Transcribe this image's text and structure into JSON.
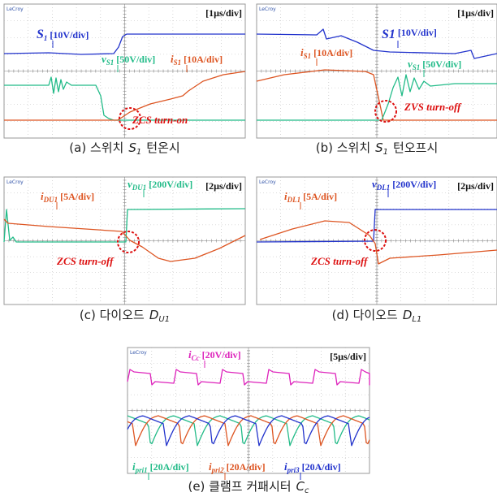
{
  "logo": "LeCroy",
  "panels": [
    {
      "timebase": "[1µs/div]",
      "caption": {
        "text": "(a) 스위치",
        "symbol": "S",
        "sub": "1",
        "suffix": "턴온시"
      },
      "labels": [
        {
          "symbol": "S",
          "sub": "1",
          "scale": "[10V/div]"
        },
        {
          "symbol": "v",
          "sub": "S1",
          "scale": "[50V/div]"
        },
        {
          "symbol": "i",
          "sub": "S1",
          "scale": "[10A/div]"
        }
      ],
      "annotation": "ZCS turn-on"
    },
    {
      "timebase": "[1µs/div]",
      "caption": {
        "text": "(b) 스위치",
        "symbol": "S",
        "sub": "1",
        "suffix": "턴오프시"
      },
      "labels": [
        {
          "symbol": "i",
          "sub": "S1",
          "scale": "[10A/div]"
        },
        {
          "symbol": "S1",
          "sub": "",
          "scale": "[10V/div]"
        },
        {
          "symbol": "v",
          "sub": "S1",
          "scale": "[50V/div]"
        }
      ],
      "annotation": "ZVS turn-off"
    },
    {
      "timebase": "[2µs/div]",
      "caption": {
        "text": "(c) 다이오드",
        "symbol": "D",
        "sub": "U1",
        "suffix": ""
      },
      "labels": [
        {
          "symbol": "i",
          "sub": "DU1",
          "scale": "[5A/div]"
        },
        {
          "symbol": "v",
          "sub": "DU1",
          "scale": "[200V/div]"
        }
      ],
      "annotation": "ZCS turn-off"
    },
    {
      "timebase": "[2µs/div]",
      "caption": {
        "text": "(d) 다이오드",
        "symbol": "D",
        "sub": "L1",
        "suffix": ""
      },
      "labels": [
        {
          "symbol": "i",
          "sub": "DL1",
          "scale": "[5A/div]"
        },
        {
          "symbol": "v",
          "sub": "DL1",
          "scale": "[200V/div]"
        }
      ],
      "annotation": "ZCS turn-off"
    },
    {
      "timebase": "[5µs/div]",
      "caption": {
        "text": "(e) 클램프 커패시터",
        "symbol": "C",
        "sub": "c",
        "suffix": ""
      },
      "labels": [
        {
          "symbol": "i",
          "sub": "Cc",
          "scale": "[20V/div]"
        },
        {
          "symbol": "i",
          "sub": "pri1",
          "scale": "[20A/div]"
        },
        {
          "symbol": "i",
          "sub": "pri2",
          "scale": "[20A/div]"
        },
        {
          "symbol": "i",
          "sub": "pri3",
          "scale": "[20A/div]"
        }
      ]
    }
  ]
}
